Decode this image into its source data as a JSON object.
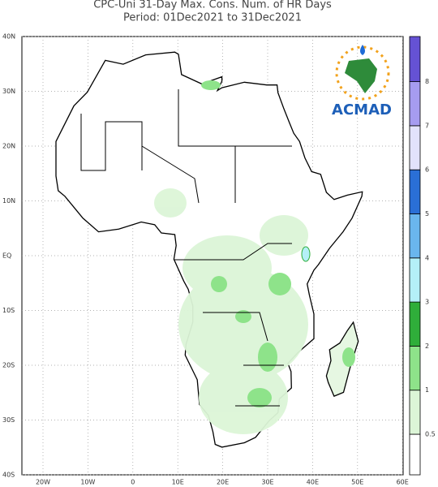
{
  "title": "CPC-Uni 31-Day Max. Cons. Num. of HR Days",
  "subtitle": "Period: 01Dec2021 to 31Dec2021",
  "lat_labels": [
    "40N",
    "30N",
    "20N",
    "10N",
    "EQ",
    "10S",
    "20S",
    "30S",
    "40S"
  ],
  "lon_labels": [
    "20W",
    "10W",
    "0",
    "10E",
    "20E",
    "30E",
    "40E",
    "50E",
    "60E"
  ],
  "logo": "ACMAD",
  "legend": {
    "labels": [
      "0.5",
      "1",
      "2",
      "3",
      "4",
      "5",
      "6",
      "7",
      "8"
    ],
    "colors": [
      "#ffffff",
      "#dcf5d7",
      "#8ee38a",
      "#2fae3a",
      "#b4f0f8",
      "#6ab6ee",
      "#2a6fd6",
      "#e2e2fb",
      "#a69cf0",
      "#6552d4"
    ]
  }
}
